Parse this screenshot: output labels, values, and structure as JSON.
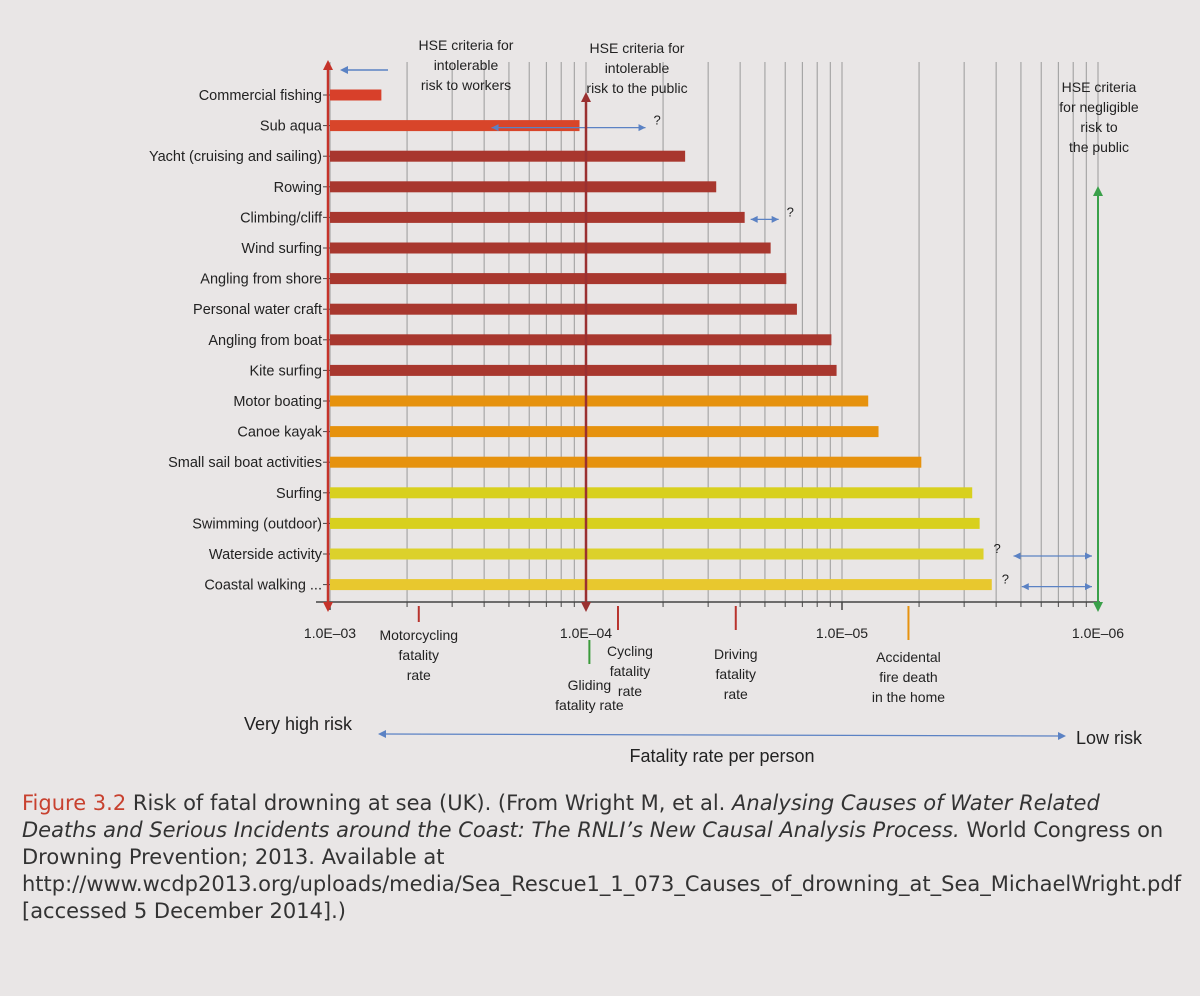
{
  "chart_data": {
    "type": "bar",
    "orientation": "horizontal",
    "x_scale": "log",
    "x_reversed": true,
    "xlim": [
      0.001,
      1e-06
    ],
    "x_ticks": [
      {
        "value": 0.001,
        "label": "1.0E–03"
      },
      {
        "value": 0.0001,
        "label": "1.0E–04"
      },
      {
        "value": 1e-05,
        "label": "1.0E–05"
      },
      {
        "value": 1e-06,
        "label": "1.0E–06"
      }
    ],
    "grid": true,
    "categories": [
      "Commercial fishing",
      "Sub aqua",
      "Yacht (cruising and sailing)",
      "Rowing",
      "Climbing/cliff",
      "Wind surfing",
      "Angling from shore",
      "Personal water craft",
      "Angling from boat",
      "Kite surfing",
      "Motor boating",
      "Canoe kayak",
      "Small sail boat activities",
      "Surfing",
      "Swimming (outdoor)",
      "Waterside activity",
      "Coastal walking ..."
    ],
    "values": [
      0.00063,
      0.000106,
      4.1e-05,
      3.1e-05,
      2.4e-05,
      1.9e-05,
      1.65e-05,
      1.5e-05,
      1.1e-05,
      1.05e-05,
      7.9e-06,
      7.2e-06,
      4.9e-06,
      3.1e-06,
      2.9e-06,
      2.8e-06,
      2.6e-06
    ],
    "bar_colors": [
      "#d8402a",
      "#d8452a",
      "#a8372e",
      "#a8372e",
      "#a8372e",
      "#a8372e",
      "#a8372e",
      "#a8372e",
      "#a8372e",
      "#a8372e",
      "#e6920e",
      "#e6920e",
      "#e6920e",
      "#d8d01e",
      "#d8d01e",
      "#dcd12b",
      "#e8c82e"
    ],
    "uncertain_flags": [
      {
        "category": "Sub aqua",
        "text": "?"
      },
      {
        "category": "Climbing/cliff",
        "text": "?"
      },
      {
        "category": "Waterside activity",
        "text": "?"
      },
      {
        "category": "Coastal walking ...",
        "text": "?"
      }
    ],
    "criteria": [
      {
        "lines": [
          "HSE criteria for",
          "intolerable",
          "risk to workers"
        ],
        "value": 0.001
      },
      {
        "lines": [
          "HSE criteria for",
          "intolerable",
          "risk to the public"
        ],
        "value": 0.0001
      },
      {
        "lines": [
          "HSE criteria",
          "for negligible",
          "risk to",
          "the public"
        ],
        "value": 1e-06
      }
    ],
    "reference_markers": [
      {
        "lines": [
          "Motorcycling",
          "fatality",
          "rate"
        ],
        "value": 0.00045,
        "color": "#b8332d"
      },
      {
        "lines": [
          "Gliding",
          "fatality rate"
        ],
        "value": 9.7e-05,
        "color": "#3a9a3a"
      },
      {
        "lines": [
          "Cycling",
          "fatality",
          "rate"
        ],
        "value": 7.5e-05,
        "color": "#b8332d"
      },
      {
        "lines": [
          "Driving",
          "fatality",
          "rate"
        ],
        "value": 2.6e-05,
        "color": "#b8332d"
      },
      {
        "lines": [
          "Accidental",
          "fire death",
          "in the home"
        ],
        "value": 5.5e-06,
        "color": "#e6920e"
      }
    ],
    "scale_left_label": "Very high risk",
    "scale_right_label": "Low risk",
    "xlabel": "Fatality rate per person"
  },
  "caption": {
    "figure_label": "Figure 3.2",
    "text_1": " Risk of fatal drowning at sea (UK). (From Wright M, et al. ",
    "title_italic": "Analysing Causes of Water Related Deaths and Serious Incidents around the Coast: The RNLI’s New Causal Analysis Process.",
    "text_2": " World Congress on Drowning Prevention; 2013. Available at http://www.wcdp2013.org/uploads/media/Sea_Rescue1_1_073_Causes_of_drowning_at_Sea_MichaelWright.pdf [accessed 5 December 2014].)"
  }
}
